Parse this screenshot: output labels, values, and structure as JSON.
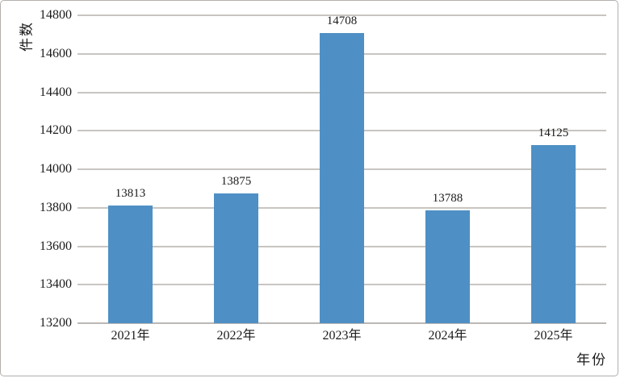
{
  "chart_data": {
    "type": "bar",
    "categories": [
      "2021年",
      "2022年",
      "2023年",
      "2024年",
      "2025年"
    ],
    "values": [
      13813,
      13875,
      14708,
      13788,
      14125
    ],
    "title": "",
    "xlabel": "年份",
    "ylabel": "件数",
    "ylim": [
      13200,
      14800
    ],
    "yticks": [
      13200,
      13400,
      13600,
      13800,
      14000,
      14200,
      14400,
      14600,
      14800
    ],
    "grid": true,
    "legend": "none",
    "bar_color": "#4e90c5",
    "gridline_color": "#c8c5c2",
    "text_color": "#1b1b1b",
    "frame_border_color": "#b3afac",
    "background_color": "#ffffff"
  }
}
